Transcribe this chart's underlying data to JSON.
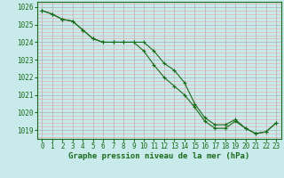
{
  "title": "Graphe pression niveau de la mer (hPa)",
  "bg_color": "#c8eaea",
  "grid_major_color": "#b0b0b0",
  "grid_minor_color": "#e8b0b0",
  "line_color": "#1a6b1a",
  "marker_color": "#1a6b1a",
  "xlim": [
    -0.5,
    23.5
  ],
  "ylim": [
    1018.5,
    1026.3
  ],
  "yticks": [
    1019,
    1020,
    1021,
    1022,
    1023,
    1024,
    1025,
    1026
  ],
  "xticks": [
    0,
    1,
    2,
    3,
    4,
    5,
    6,
    7,
    8,
    9,
    10,
    11,
    12,
    13,
    14,
    15,
    16,
    17,
    18,
    19,
    20,
    21,
    22,
    23
  ],
  "series1": [
    1025.8,
    1025.6,
    1025.3,
    1025.2,
    1024.7,
    1024.2,
    1024.0,
    1024.0,
    1024.0,
    1024.0,
    1024.0,
    1023.5,
    1022.8,
    1022.4,
    1021.7,
    1020.5,
    1019.7,
    1019.3,
    1019.3,
    1019.6,
    1019.1,
    1018.8,
    1018.9,
    1019.4
  ],
  "series2": [
    1025.8,
    1025.6,
    1025.3,
    1025.2,
    1024.7,
    1024.2,
    1024.0,
    1024.0,
    1024.0,
    1024.0,
    1023.5,
    1022.7,
    1022.0,
    1021.5,
    1021.0,
    1020.3,
    1019.5,
    1019.1,
    1019.1,
    1019.5,
    1019.1,
    1018.8,
    1018.9,
    1019.4
  ],
  "tick_labelsize": 5.5,
  "xlabel_fontsize": 6.5
}
